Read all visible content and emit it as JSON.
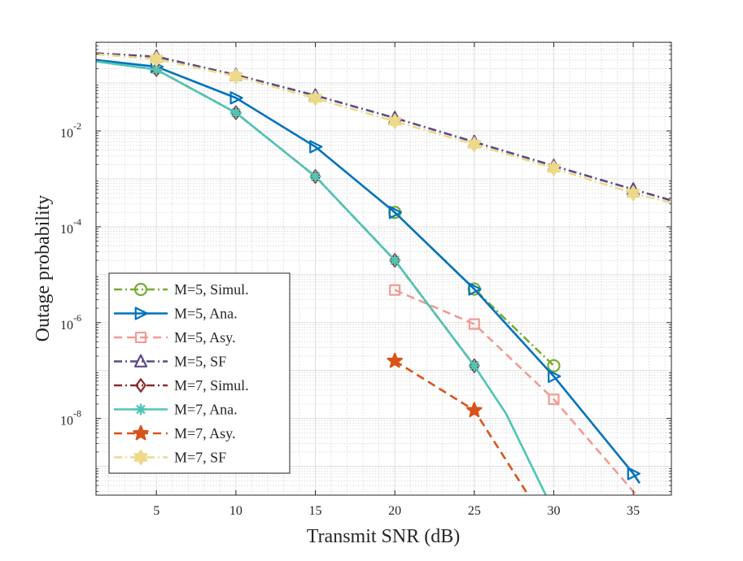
{
  "chart_data": {
    "type": "line",
    "title": "",
    "xlabel": "Transmit SNR (dB)",
    "ylabel": "Outage probability",
    "xlim": [
      1.2,
      37.4
    ],
    "ylim_log10": [
      -9.6,
      -0.15
    ],
    "yscale": "log",
    "grid": true,
    "minor_grid": true,
    "legend_position": "bottom-left",
    "x_ticks": [
      5,
      10,
      15,
      20,
      25,
      30,
      35
    ],
    "y_ticks": [
      {
        "base": "10",
        "exp": "-2",
        "log10": -2
      },
      {
        "base": "10",
        "exp": "-4",
        "log10": -4
      },
      {
        "base": "10",
        "exp": "-6",
        "log10": -6
      },
      {
        "base": "10",
        "exp": "-8",
        "log10": -8
      }
    ],
    "series": [
      {
        "name": "M=5, Simul.",
        "color": "#77AC30",
        "dash": "dashdot",
        "marker": "circle",
        "points": [
          {
            "x": 20,
            "y": -3.7
          },
          {
            "x": 25,
            "y": -5.3
          },
          {
            "x": 30,
            "y": -6.9
          }
        ]
      },
      {
        "name": "M=5, Ana.",
        "color": "#0072BD",
        "dash": "solid",
        "marker": "triangle-right",
        "points": [
          {
            "x": 1.2,
            "y": -0.52
          },
          {
            "x": 5,
            "y": -0.66
          },
          {
            "x": 10,
            "y": -1.31
          },
          {
            "x": 15,
            "y": -2.33
          },
          {
            "x": 20,
            "y": -3.7
          },
          {
            "x": 25,
            "y": -5.3
          },
          {
            "x": 30,
            "y": -7.12
          },
          {
            "x": 35,
            "y": -9.15
          },
          {
            "x": 35.4,
            "y": -9.35
          }
        ]
      },
      {
        "name": "M=5, Asy.",
        "color": "#F29B93",
        "dash": "dashed",
        "marker": "square",
        "points": [
          {
            "x": 20,
            "y": -5.32
          },
          {
            "x": 25,
            "y": -6.03
          },
          {
            "x": 30,
            "y": -7.6
          },
          {
            "x": 35.2,
            "y": -9.6
          }
        ]
      },
      {
        "name": "M=5, SF",
        "color": "#5C4A85",
        "dash": "dashdot",
        "marker": "triangle-up",
        "points": [
          {
            "x": 1.2,
            "y": -0.38
          },
          {
            "x": 5,
            "y": -0.45
          },
          {
            "x": 10,
            "y": -0.83
          },
          {
            "x": 15,
            "y": -1.26
          },
          {
            "x": 20,
            "y": -1.73
          },
          {
            "x": 25,
            "y": -2.23
          },
          {
            "x": 30,
            "y": -2.73
          },
          {
            "x": 35,
            "y": -3.22
          },
          {
            "x": 37.4,
            "y": -3.45
          }
        ]
      },
      {
        "name": "M=7, Simul.",
        "color": "#8C2B2B",
        "dash": "dashdot",
        "marker": "diamond",
        "points": [
          {
            "x": 5,
            "y": -0.72
          },
          {
            "x": 10,
            "y": -1.62
          },
          {
            "x": 15,
            "y": -2.95
          },
          {
            "x": 20,
            "y": -4.7
          },
          {
            "x": 25,
            "y": -6.9
          }
        ]
      },
      {
        "name": "M=7, Ana.",
        "color": "#4EC5B5",
        "dash": "solid",
        "marker": "asterisk",
        "points": [
          {
            "x": 1.2,
            "y": -0.55
          },
          {
            "x": 5,
            "y": -0.72
          },
          {
            "x": 10,
            "y": -1.62
          },
          {
            "x": 15,
            "y": -2.95
          },
          {
            "x": 20,
            "y": -4.7
          },
          {
            "x": 25,
            "y": -6.9
          },
          {
            "x": 27,
            "y": -7.9
          },
          {
            "x": 29.5,
            "y": -9.6
          }
        ]
      },
      {
        "name": "M=7, Asy.",
        "color": "#D95319",
        "dash": "dashed",
        "marker": "star",
        "points": [
          {
            "x": 20,
            "y": -6.8
          },
          {
            "x": 25,
            "y": -7.83
          },
          {
            "x": 28.4,
            "y": -9.6
          }
        ]
      },
      {
        "name": "M=7, SF",
        "color": "#EDD98A",
        "dash": "dashdot",
        "marker": "hexagram",
        "points": [
          {
            "x": 1.2,
            "y": -0.4
          },
          {
            "x": 5,
            "y": -0.5
          },
          {
            "x": 10,
            "y": -0.86
          },
          {
            "x": 15,
            "y": -1.32
          },
          {
            "x": 20,
            "y": -1.8
          },
          {
            "x": 25,
            "y": -2.28
          },
          {
            "x": 30,
            "y": -2.78
          },
          {
            "x": 35,
            "y": -3.3
          },
          {
            "x": 37.4,
            "y": -3.5
          }
        ]
      }
    ]
  }
}
